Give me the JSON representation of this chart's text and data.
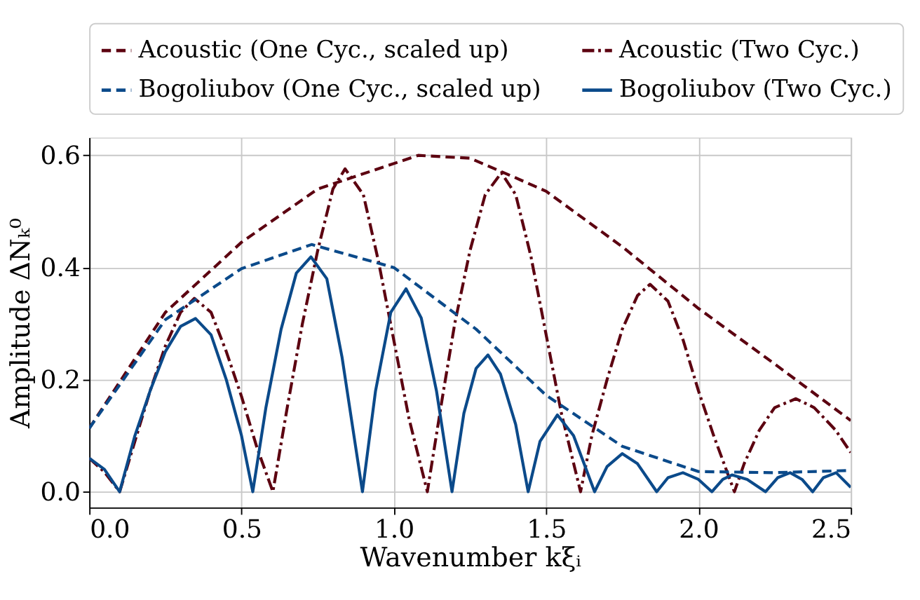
{
  "chart_data": {
    "type": "line",
    "xlabel": "Wavenumber kξᵢ",
    "ylabel": "Amplitude ΔNₖ⁰",
    "xlim": [
      0,
      2.5
    ],
    "ylim": [
      -0.028,
      0.632
    ],
    "xticks": [
      {
        "value": 0,
        "label": "0.0"
      },
      {
        "value": 0.5,
        "label": "0.5"
      },
      {
        "value": 1,
        "label": "1.0"
      },
      {
        "value": 1.5,
        "label": "1.5"
      },
      {
        "value": 2,
        "label": "2.0"
      },
      {
        "value": 2.5,
        "label": "2.5"
      }
    ],
    "yticks": [
      {
        "value": 0,
        "label": "0.0"
      },
      {
        "value": 0.2,
        "label": "0.2"
      },
      {
        "value": 0.4,
        "label": "0.4"
      },
      {
        "value": 0.6,
        "label": "0.6"
      }
    ],
    "grid": true,
    "legend": "top",
    "marker": "none",
    "series": [
      {
        "name": "Acoustic (One Cyc., scaled up)",
        "color": "#5c0010",
        "line_style": "dashed",
        "x": [
          0,
          0.25,
          0.5,
          0.75,
          1.08,
          1.25,
          1.4,
          1.5,
          1.75,
          2.0,
          2.25,
          2.5
        ],
        "values": [
          0.113,
          0.32,
          0.445,
          0.54,
          0.6,
          0.595,
          0.56,
          0.536,
          0.437,
          0.327,
          0.228,
          0.127
        ]
      },
      {
        "name": "Acoustic (Two Cyc.)",
        "color": "#5c0010",
        "line_style": "dashdot",
        "x": [
          0,
          0.05,
          0.1,
          0.15,
          0.2,
          0.25,
          0.3,
          0.345,
          0.4,
          0.45,
          0.5,
          0.55,
          0.603,
          0.65,
          0.7,
          0.75,
          0.8,
          0.84,
          0.9,
          0.95,
          1.0,
          1.05,
          1.11,
          1.16,
          1.2,
          1.25,
          1.3,
          1.353,
          1.4,
          1.45,
          1.5,
          1.55,
          1.613,
          1.65,
          1.7,
          1.75,
          1.8,
          1.841,
          1.9,
          1.95,
          2.0,
          2.05,
          2.118,
          2.15,
          2.2,
          2.25,
          2.32,
          2.38,
          2.45,
          2.5
        ],
        "values": [
          0.06,
          0.035,
          0,
          0.09,
          0.18,
          0.26,
          0.32,
          0.345,
          0.32,
          0.25,
          0.17,
          0.08,
          0,
          0.15,
          0.3,
          0.43,
          0.54,
          0.576,
          0.53,
          0.41,
          0.27,
          0.13,
          0,
          0.17,
          0.3,
          0.43,
          0.53,
          0.569,
          0.53,
          0.42,
          0.28,
          0.14,
          0,
          0.1,
          0.2,
          0.29,
          0.35,
          0.37,
          0.34,
          0.27,
          0.18,
          0.1,
          0,
          0.05,
          0.11,
          0.15,
          0.166,
          0.15,
          0.11,
          0.07
        ]
      },
      {
        "name": "Bogoliubov (One Cyc., scaled up)",
        "color": "#0b4a8a",
        "line_style": "dashed",
        "x": [
          0,
          0.25,
          0.5,
          0.73,
          1.0,
          1.27,
          1.5,
          1.75,
          2.0,
          2.25,
          2.5
        ],
        "values": [
          0.113,
          0.307,
          0.398,
          0.441,
          0.4,
          0.29,
          0.172,
          0.081,
          0.036,
          0.034,
          0.038
        ]
      },
      {
        "name": "Bogoliubov (Two Cyc.)",
        "color": "#0b4a8a",
        "line_style": "solid",
        "x": [
          0,
          0.05,
          0.1,
          0.15,
          0.2,
          0.25,
          0.3,
          0.349,
          0.4,
          0.45,
          0.5,
          0.537,
          0.58,
          0.63,
          0.68,
          0.728,
          0.78,
          0.83,
          0.897,
          0.94,
          0.99,
          1.04,
          1.09,
          1.14,
          1.191,
          1.23,
          1.27,
          1.309,
          1.35,
          1.4,
          1.441,
          1.48,
          1.537,
          1.59,
          1.659,
          1.7,
          1.75,
          1.8,
          1.863,
          1.9,
          1.949,
          2.0,
          2.044,
          2.08,
          2.11,
          2.16,
          2.22,
          2.26,
          2.301,
          2.34,
          2.375,
          2.41,
          2.452,
          2.5
        ],
        "values": [
          0.06,
          0.04,
          0,
          0.1,
          0.18,
          0.25,
          0.295,
          0.309,
          0.28,
          0.2,
          0.1,
          0,
          0.15,
          0.29,
          0.39,
          0.419,
          0.38,
          0.24,
          0,
          0.18,
          0.32,
          0.362,
          0.31,
          0.18,
          0,
          0.14,
          0.22,
          0.244,
          0.21,
          0.12,
          0,
          0.09,
          0.137,
          0.1,
          0,
          0.045,
          0.068,
          0.05,
          0,
          0.025,
          0.034,
          0.022,
          0,
          0.022,
          0.03,
          0.022,
          0,
          0.025,
          0.034,
          0.022,
          0,
          0.025,
          0.034,
          0.008
        ]
      }
    ]
  }
}
